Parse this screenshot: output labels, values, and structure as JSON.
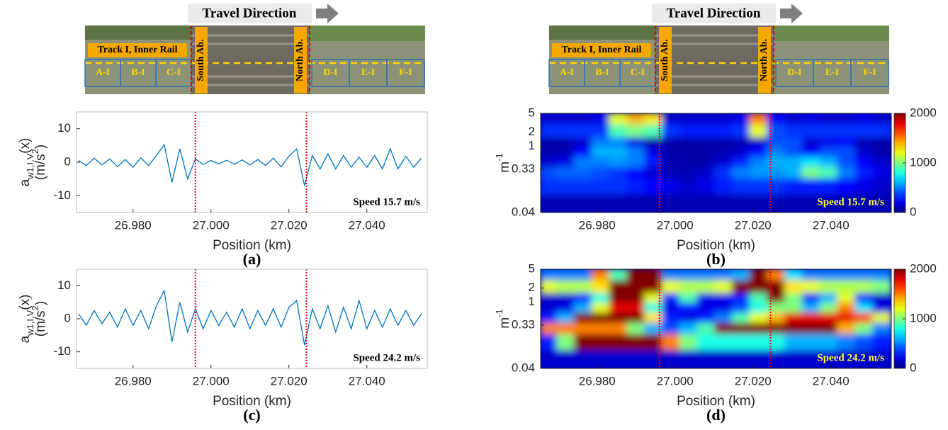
{
  "banner": {
    "direction": "Travel Direction",
    "track": "Track I, Inner Rail",
    "south": "South Ab.",
    "north": "North Ab.",
    "sections": [
      "A-I",
      "B-I",
      "C-I",
      "D-I",
      "E-I",
      "F-I"
    ]
  },
  "chart_data": [
    {
      "type": "line",
      "panel": "(a)",
      "xlabel": "Position (km)",
      "ylabel": [
        "a",
        "w1,I,V",
        "(x)"
      ],
      "ylabel_unit": [
        "(m/s",
        "2",
        ")"
      ],
      "annotation": "Speed 15.7 m/s",
      "annotation_color": "#000000",
      "color": "#0072bd",
      "xlim": [
        26.9655,
        27.0555
      ],
      "xticks": [
        {
          "value": 26.98,
          "label": "26.980"
        },
        {
          "value": 27.0,
          "label": "27.000"
        },
        {
          "value": 27.02,
          "label": "27.020"
        },
        {
          "value": 27.04,
          "label": "27.040"
        }
      ],
      "ylim": [
        -15,
        15
      ],
      "yticks": [
        -10,
        0,
        10
      ],
      "vlines": [
        26.996,
        27.0245
      ],
      "vline_color": "#e8000b",
      "x": [
        26.966,
        26.968,
        26.97,
        26.972,
        26.974,
        26.976,
        26.978,
        26.98,
        26.982,
        26.984,
        26.986,
        26.988,
        26.99,
        26.992,
        26.994,
        26.996,
        26.998,
        27.0,
        27.002,
        27.004,
        27.006,
        27.008,
        27.01,
        27.012,
        27.014,
        27.016,
        27.018,
        27.02,
        27.022,
        27.024,
        27.026,
        27.028,
        27.03,
        27.032,
        27.034,
        27.036,
        27.038,
        27.04,
        27.042,
        27.044,
        27.046,
        27.048,
        27.05,
        27.052,
        27.054
      ],
      "values": [
        0.5,
        -1,
        1.2,
        -0.8,
        1,
        -1.3,
        0.8,
        -1.5,
        1.3,
        -1,
        2,
        5.2,
        -6,
        4,
        -5,
        1,
        -0.7,
        0.5,
        -0.5,
        0.6,
        -0.6,
        0.7,
        -0.8,
        0.8,
        -1,
        1.2,
        -1.4,
        1.8,
        4,
        -7,
        2,
        -2,
        2.5,
        -2,
        2,
        -1.5,
        1.5,
        -1.5,
        2,
        -2,
        4,
        -2,
        1.8,
        -1.5,
        1.2
      ]
    },
    {
      "type": "heatmap",
      "panel": "(b)",
      "xlabel": "Position (km)",
      "ylabel": [
        "m",
        "-1"
      ],
      "annotation": "Speed 15.7 m/s",
      "annotation_color": "#ffff40",
      "xlim": [
        26.9655,
        27.0555
      ],
      "xticks": [
        {
          "value": 26.98,
          "label": "26.980"
        },
        {
          "value": 27.0,
          "label": "27.000"
        },
        {
          "value": 27.02,
          "label": "27.020"
        },
        {
          "value": 27.04,
          "label": "27.040"
        }
      ],
      "ylim": [
        0.04,
        5
      ],
      "ylog": true,
      "yticks": [
        0.04,
        0.33,
        1,
        2,
        5
      ],
      "colormap": "jet",
      "clim": [
        0,
        2000
      ],
      "cticks": [
        0,
        1000,
        2000
      ],
      "vlines": [
        26.996,
        27.0245
      ],
      "vline_color": "#e8000b",
      "x_centers": [
        26.9675,
        26.972,
        26.9765,
        26.981,
        26.9855,
        26.99,
        26.9945,
        26.999,
        27.0035,
        27.008,
        27.0125,
        27.017,
        27.0215,
        27.026,
        27.0305,
        27.035,
        27.0395,
        27.044,
        27.0485,
        27.053
      ],
      "y_centers": [
        4.2,
        1.9,
        1.2,
        0.75,
        0.45,
        0.28,
        0.15,
        0.06
      ],
      "z": [
        [
          150,
          150,
          150,
          200,
          1200,
          1400,
          1300,
          150,
          150,
          150,
          150,
          200,
          1500,
          250,
          150,
          200,
          150,
          150,
          200,
          150
        ],
        [
          350,
          350,
          350,
          350,
          900,
          1000,
          900,
          350,
          300,
          300,
          300,
          350,
          1200,
          400,
          350,
          350,
          350,
          350,
          350,
          350
        ],
        [
          80,
          80,
          150,
          500,
          500,
          200,
          80,
          80,
          80,
          80,
          80,
          100,
          150,
          400,
          400,
          150,
          200,
          250,
          100,
          80
        ],
        [
          80,
          100,
          250,
          600,
          600,
          500,
          200,
          80,
          80,
          80,
          100,
          150,
          250,
          500,
          400,
          250,
          400,
          400,
          150,
          80
        ],
        [
          150,
          200,
          500,
          500,
          550,
          500,
          300,
          100,
          80,
          80,
          150,
          300,
          500,
          600,
          600,
          700,
          600,
          400,
          250,
          150
        ],
        [
          400,
          450,
          450,
          400,
          350,
          250,
          150,
          100,
          100,
          150,
          350,
          500,
          550,
          550,
          600,
          1000,
          900,
          500,
          300,
          200
        ],
        [
          350,
          350,
          350,
          350,
          350,
          300,
          250,
          200,
          150,
          200,
          300,
          350,
          350,
          350,
          300,
          300,
          300,
          250,
          200,
          150
        ],
        [
          100,
          100,
          100,
          100,
          100,
          100,
          100,
          100,
          100,
          100,
          100,
          100,
          100,
          100,
          100,
          100,
          100,
          100,
          100,
          100
        ]
      ]
    },
    {
      "type": "line",
      "panel": "(c)",
      "xlabel": "Position (km)",
      "ylabel": [
        "a",
        "w1,I,V",
        "(x)"
      ],
      "ylabel_unit": [
        "(m/s",
        "2",
        ")"
      ],
      "annotation": "Speed 24.2 m/s",
      "annotation_color": "#000000",
      "color": "#0072bd",
      "xlim": [
        26.9655,
        27.0555
      ],
      "xticks": [
        {
          "value": 26.98,
          "label": "26.980"
        },
        {
          "value": 27.0,
          "label": "27.000"
        },
        {
          "value": 27.02,
          "label": "27.020"
        },
        {
          "value": 27.04,
          "label": "27.040"
        }
      ],
      "ylim": [
        -15,
        15
      ],
      "yticks": [
        -10,
        0,
        10
      ],
      "vlines": [
        26.996,
        27.0245
      ],
      "vline_color": "#e8000b",
      "x": [
        26.966,
        26.968,
        26.97,
        26.972,
        26.974,
        26.976,
        26.978,
        26.98,
        26.982,
        26.984,
        26.986,
        26.988,
        26.99,
        26.992,
        26.994,
        26.996,
        26.998,
        27.0,
        27.002,
        27.004,
        27.006,
        27.008,
        27.01,
        27.012,
        27.014,
        27.016,
        27.018,
        27.02,
        27.022,
        27.024,
        27.026,
        27.028,
        27.03,
        27.032,
        27.034,
        27.036,
        27.038,
        27.04,
        27.042,
        27.044,
        27.046,
        27.048,
        27.05,
        27.052,
        27.054
      ],
      "values": [
        1.5,
        -2,
        2.5,
        -1.5,
        2,
        -2.5,
        3,
        -2,
        2.5,
        -3,
        4,
        8.5,
        -7,
        5,
        -4,
        3,
        -3,
        2.5,
        -2,
        2,
        -2.5,
        3,
        -3,
        2.5,
        -2,
        3,
        -2.5,
        3.5,
        5.5,
        -8,
        3,
        -3,
        4,
        -4,
        3.5,
        -3,
        5.5,
        -3,
        2.5,
        -2.5,
        3,
        -2,
        2.5,
        -2,
        1.5
      ]
    },
    {
      "type": "heatmap",
      "panel": "(d)",
      "xlabel": "Position (km)",
      "ylabel": [
        "m",
        "-1"
      ],
      "annotation": "Speed 24.2 m/s",
      "annotation_color": "#ffff40",
      "xlim": [
        26.9655,
        27.0555
      ],
      "xticks": [
        {
          "value": 26.98,
          "label": "26.980"
        },
        {
          "value": 27.0,
          "label": "27.000"
        },
        {
          "value": 27.02,
          "label": "27.020"
        },
        {
          "value": 27.04,
          "label": "27.040"
        }
      ],
      "ylim": [
        0.04,
        5
      ],
      "ylog": true,
      "yticks": [
        0.04,
        0.33,
        1,
        2,
        5
      ],
      "colormap": "jet",
      "clim": [
        0,
        2000
      ],
      "cticks": [
        0,
        1000,
        2000
      ],
      "vlines": [
        26.996,
        27.0245
      ],
      "vline_color": "#e8000b",
      "x_centers": [
        26.9675,
        26.972,
        26.9765,
        26.981,
        26.9855,
        26.99,
        26.9945,
        26.999,
        27.0035,
        27.008,
        27.0125,
        27.017,
        27.0215,
        27.026,
        27.0305,
        27.035,
        27.0395,
        27.044,
        27.0485,
        27.053
      ],
      "y_centers": [
        4.2,
        1.9,
        1.2,
        0.75,
        0.45,
        0.28,
        0.15,
        0.06
      ],
      "z": [
        [
          500,
          500,
          500,
          1500,
          900,
          2000,
          2000,
          500,
          500,
          500,
          500,
          600,
          2000,
          1500,
          700,
          500,
          500,
          500,
          500,
          500
        ],
        [
          1200,
          1100,
          1100,
          1300,
          2000,
          2000,
          2000,
          1200,
          1100,
          1100,
          1200,
          2000,
          2000,
          2000,
          1300,
          1200,
          1100,
          1100,
          1100,
          1000
        ],
        [
          150,
          150,
          300,
          800,
          2000,
          2000,
          1200,
          300,
          900,
          200,
          200,
          300,
          900,
          2000,
          1000,
          300,
          600,
          1200,
          300,
          150
        ],
        [
          150,
          200,
          600,
          1200,
          1800,
          1800,
          800,
          200,
          300,
          200,
          200,
          400,
          800,
          1000,
          1000,
          600,
          1000,
          1500,
          700,
          200
        ],
        [
          300,
          600,
          2000,
          2000,
          2000,
          2000,
          1300,
          300,
          200,
          300,
          500,
          900,
          1200,
          1400,
          1800,
          1800,
          1800,
          1800,
          1600,
          1200
        ],
        [
          1500,
          1500,
          1500,
          1500,
          1500,
          1000,
          600,
          400,
          600,
          900,
          2000,
          2000,
          2000,
          2000,
          2000,
          2000,
          2000,
          1400,
          1000,
          500
        ],
        [
          300,
          1000,
          2000,
          2000,
          2000,
          2000,
          2000,
          1500,
          1000,
          800,
          800,
          800,
          800,
          800,
          600,
          600,
          600,
          500,
          400,
          300
        ],
        [
          150,
          150,
          150,
          150,
          150,
          150,
          150,
          150,
          150,
          150,
          150,
          150,
          150,
          150,
          150,
          150,
          150,
          150,
          150,
          150
        ]
      ]
    }
  ]
}
